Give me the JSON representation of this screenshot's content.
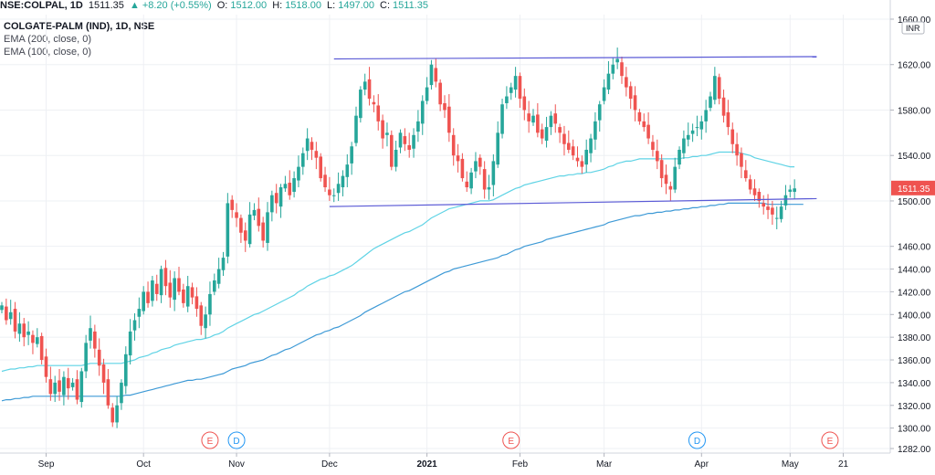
{
  "header": {
    "symbol": "NSE:COLPAL, 1D",
    "last": "1511.35",
    "arrow": "▲",
    "change": "+8.20 (+0.55%)",
    "o_label": "O:",
    "o_value": "1512.00",
    "h_label": "H:",
    "h_value": "1518.00",
    "l_label": "L:",
    "l_value": "1497.00",
    "c_label": "C:",
    "c_value": "1511.35"
  },
  "legend": {
    "title": "COLGATE-PALM (IND), 1D, NSE",
    "ema200": "EMA (200, close, 0)",
    "ema100": "EMA (100, close, 0)"
  },
  "currency": "INR",
  "colors": {
    "up": "#26a69a",
    "down": "#ef5350",
    "ema100": "#5fd3e5",
    "ema200": "#3e9ad6",
    "trendline": "#5b5bd6",
    "grid": "#eef0f4",
    "price_badge": "#ef5350"
  },
  "chart_data": {
    "type": "candlestick",
    "y_ticks": [
      "1282.00",
      "1300.00",
      "1320.00",
      "1340.00",
      "1360.00",
      "1380.00",
      "1400.00",
      "1420.00",
      "1440.00",
      "1460.00",
      "1500.00",
      "1540.00",
      "1580.00",
      "1620.00",
      "1660.00"
    ],
    "ylim": [
      1278,
      1664
    ],
    "x_ticks": [
      {
        "label": "Sep",
        "bold": false,
        "index": 10
      },
      {
        "label": "Oct",
        "bold": false,
        "index": 32
      },
      {
        "label": "Nov",
        "bold": false,
        "index": 53
      },
      {
        "label": "Dec",
        "bold": false,
        "index": 74
      },
      {
        "label": "2021",
        "bold": true,
        "index": 96
      },
      {
        "label": "Feb",
        "bold": false,
        "index": 117
      },
      {
        "label": "Mar",
        "bold": false,
        "index": 136
      },
      {
        "label": "Apr",
        "bold": false,
        "index": 158
      },
      {
        "label": "May",
        "bold": false,
        "index": 178
      },
      {
        "label": "21",
        "bold": false,
        "index": 190
      }
    ],
    "last_price": "1511.35",
    "events": [
      {
        "label": "E",
        "type": "earnings",
        "index": 47
      },
      {
        "label": "D",
        "type": "dividend",
        "index": 53
      },
      {
        "label": "E",
        "type": "earnings",
        "index": 115
      },
      {
        "label": "D",
        "type": "dividend",
        "index": 157
      },
      {
        "label": "E",
        "type": "earnings",
        "index": 187
      }
    ],
    "closes": [
      1408,
      1395,
      1402,
      1385,
      1392,
      1380,
      1385,
      1375,
      1380,
      1360,
      1345,
      1330,
      1340,
      1332,
      1345,
      1335,
      1340,
      1325,
      1350,
      1375,
      1388,
      1370,
      1355,
      1340,
      1320,
      1305,
      1320,
      1340,
      1365,
      1385,
      1395,
      1405,
      1420,
      1410,
      1430,
      1418,
      1440,
      1425,
      1415,
      1432,
      1420,
      1410,
      1425,
      1415,
      1405,
      1390,
      1400,
      1418,
      1430,
      1440,
      1450,
      1498,
      1492,
      1485,
      1472,
      1465,
      1488,
      1492,
      1478,
      1465,
      1490,
      1505,
      1498,
      1512,
      1515,
      1505,
      1520,
      1530,
      1542,
      1555,
      1545,
      1538,
      1520,
      1512,
      1505,
      1505,
      1515,
      1522,
      1532,
      1548,
      1575,
      1598,
      1605,
      1590,
      1585,
      1570,
      1555,
      1560,
      1530,
      1545,
      1560,
      1550,
      1545,
      1558,
      1570,
      1588,
      1600,
      1620,
      1605,
      1585,
      1580,
      1560,
      1540,
      1535,
      1520,
      1512,
      1525,
      1535,
      1530,
      1510,
      1512,
      1535,
      1560,
      1585,
      1592,
      1600,
      1610,
      1590,
      1580,
      1570,
      1575,
      1560,
      1555,
      1565,
      1575,
      1568,
      1560,
      1550,
      1545,
      1540,
      1535,
      1530,
      1545,
      1555,
      1570,
      1585,
      1600,
      1612,
      1620,
      1625,
      1610,
      1600,
      1590,
      1580,
      1570,
      1565,
      1555,
      1545,
      1535,
      1520,
      1515,
      1510,
      1530,
      1545,
      1555,
      1558,
      1562,
      1565,
      1570,
      1580,
      1592,
      1610,
      1590,
      1575,
      1565,
      1550,
      1540,
      1530,
      1520,
      1510,
      1505,
      1500,
      1495,
      1492,
      1488,
      1485,
      1495,
      1505,
      1510,
      1511
    ],
    "ema100": [
      1350,
      1351,
      1352,
      1352,
      1353,
      1353,
      1354,
      1354,
      1355,
      1355,
      1355,
      1355,
      1355,
      1355,
      1355,
      1355,
      1355,
      1355,
      1355,
      1356,
      1357,
      1357,
      1357,
      1357,
      1357,
      1357,
      1357,
      1357,
      1358,
      1359,
      1360,
      1362,
      1363,
      1364,
      1366,
      1367,
      1369,
      1370,
      1371,
      1373,
      1374,
      1375,
      1376,
      1377,
      1378,
      1378,
      1379,
      1380,
      1382,
      1383,
      1385,
      1388,
      1390,
      1392,
      1394,
      1396,
      1398,
      1400,
      1401,
      1403,
      1405,
      1407,
      1409,
      1411,
      1413,
      1415,
      1417,
      1420,
      1422,
      1425,
      1427,
      1429,
      1431,
      1432,
      1434,
      1435,
      1437,
      1439,
      1441,
      1443,
      1446,
      1449,
      1452,
      1455,
      1458,
      1460,
      1462,
      1464,
      1466,
      1468,
      1470,
      1472,
      1473,
      1475,
      1477,
      1479,
      1482,
      1485,
      1487,
      1489,
      1491,
      1493,
      1494,
      1495,
      1496,
      1497,
      1498,
      1499,
      1500,
      1500,
      1500,
      1501,
      1503,
      1505,
      1507,
      1509,
      1511,
      1512,
      1514,
      1515,
      1516,
      1517,
      1518,
      1519,
      1520,
      1521,
      1522,
      1522,
      1523,
      1523,
      1524,
      1524,
      1525,
      1525,
      1526,
      1527,
      1528,
      1530,
      1531,
      1533,
      1534,
      1535,
      1535,
      1536,
      1537,
      1537,
      1537,
      1537,
      1537,
      1537,
      1537,
      1537,
      1537,
      1537,
      1538,
      1538,
      1539,
      1539,
      1540,
      1540,
      1541,
      1542,
      1543,
      1543,
      1543,
      1543,
      1543,
      1542,
      1541,
      1540,
      1538,
      1537,
      1536,
      1535,
      1534,
      1533,
      1532,
      1531,
      1530,
      1530
    ],
    "ema200": [
      1324,
      1325,
      1325,
      1326,
      1326,
      1327,
      1327,
      1328,
      1328,
      1328,
      1328,
      1328,
      1328,
      1328,
      1328,
      1328,
      1328,
      1328,
      1328,
      1328,
      1328,
      1328,
      1328,
      1328,
      1328,
      1328,
      1328,
      1328,
      1329,
      1329,
      1330,
      1331,
      1332,
      1333,
      1334,
      1335,
      1336,
      1337,
      1338,
      1339,
      1340,
      1341,
      1342,
      1342,
      1343,
      1343,
      1344,
      1345,
      1346,
      1347,
      1348,
      1350,
      1352,
      1353,
      1354,
      1355,
      1357,
      1358,
      1359,
      1360,
      1362,
      1364,
      1365,
      1367,
      1369,
      1370,
      1372,
      1374,
      1376,
      1378,
      1380,
      1382,
      1383,
      1385,
      1386,
      1388,
      1389,
      1391,
      1393,
      1395,
      1397,
      1399,
      1402,
      1404,
      1406,
      1408,
      1410,
      1412,
      1414,
      1416,
      1418,
      1420,
      1421,
      1423,
      1425,
      1427,
      1429,
      1431,
      1433,
      1435,
      1437,
      1438,
      1440,
      1441,
      1442,
      1443,
      1444,
      1445,
      1446,
      1447,
      1448,
      1449,
      1450,
      1452,
      1453,
      1455,
      1457,
      1458,
      1460,
      1461,
      1462,
      1463,
      1464,
      1466,
      1467,
      1468,
      1469,
      1470,
      1471,
      1472,
      1473,
      1474,
      1475,
      1476,
      1477,
      1478,
      1479,
      1481,
      1482,
      1483,
      1484,
      1485,
      1486,
      1487,
      1487,
      1488,
      1489,
      1489,
      1490,
      1490,
      1491,
      1491,
      1492,
      1492,
      1493,
      1493,
      1494,
      1494,
      1495,
      1495,
      1496,
      1496,
      1497,
      1497,
      1498,
      1498,
      1498,
      1498,
      1498,
      1498,
      1498,
      1498,
      1498,
      1497,
      1497,
      1497,
      1497,
      1497,
      1497,
      1497,
      1497,
      1497
    ],
    "trendlines": [
      {
        "name": "resistance",
        "i1": 75,
        "p1": 1625,
        "i2": 184,
        "p2": 1627
      },
      {
        "name": "support",
        "i1": 74,
        "p1": 1495,
        "i2": 184,
        "p2": 1502
      }
    ]
  }
}
